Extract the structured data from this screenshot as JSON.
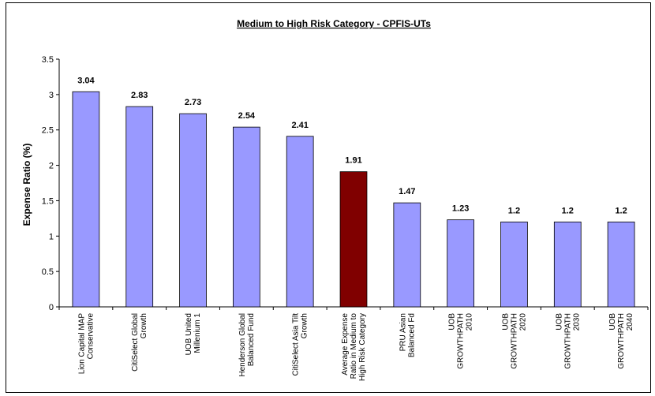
{
  "chart_data": {
    "type": "bar",
    "title": "Medium to High Risk Category - CPFIS-UTs",
    "ylabel": "Expense Ratio (%)",
    "xlabel": "",
    "ylim": [
      0,
      3.5
    ],
    "yticks": [
      "0",
      "0.5",
      "1",
      "1.5",
      "2",
      "2.5",
      "3",
      "3.5"
    ],
    "grid": false,
    "legend": "none",
    "categories": [
      [
        "Lion Capital MAP",
        "Conservative"
      ],
      [
        "CitiSelect Global",
        "Growth"
      ],
      [
        "UOB United",
        "Millenium 1"
      ],
      [
        "Henderson Global",
        "Balanced Fund"
      ],
      [
        "CitiSelect Asia Tilt",
        "Growth"
      ],
      [
        "Average Expense",
        "Ratio in Medium to",
        "High Risk Category"
      ],
      [
        "PRU Asian",
        "Balanced Fd"
      ],
      [
        "UOB",
        "GROWTHPATH",
        "2010"
      ],
      [
        "UOB",
        "GROWTHPATH",
        "2020"
      ],
      [
        "UOB",
        "GROWTHPATH",
        "2030"
      ],
      [
        "UOB",
        "GROWTHPATH",
        "2040"
      ]
    ],
    "values": [
      3.04,
      2.83,
      2.73,
      2.54,
      2.41,
      1.91,
      1.47,
      1.23,
      1.2,
      1.2,
      1.2
    ],
    "data_labels": [
      "3.04",
      "2.83",
      "2.73",
      "2.54",
      "2.41",
      "1.91",
      "1.47",
      "1.23",
      "1.2",
      "1.2",
      "1.2"
    ],
    "colors": {
      "bar": "#9999ff",
      "highlight_bar": "#800000",
      "highlight_index": 5
    }
  }
}
